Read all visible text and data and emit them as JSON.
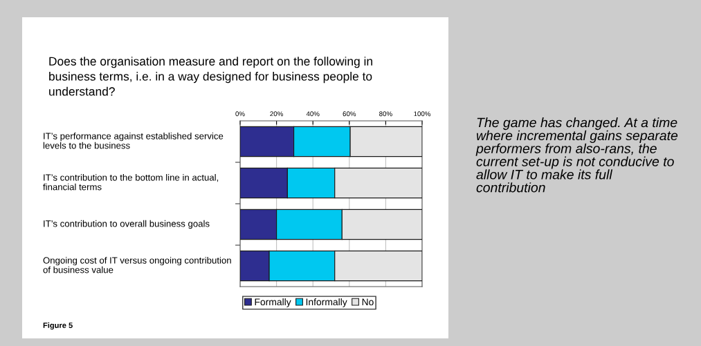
{
  "chart_data": {
    "type": "bar",
    "orientation": "horizontal",
    "stacked": true,
    "title": "Does the organisation measure and report on the following in business terms, i.e. in a way designed for business people to understand?",
    "categories": [
      "IT’s performance against established service levels to the business",
      "IT’s contribution to the bottom line in actual, financial terms",
      "IT’s contribution to overall business goals",
      "Ongoing cost of IT versus ongoing contribution of business value"
    ],
    "series": [
      {
        "name": "Formally",
        "color": "#2e2e90",
        "values": [
          29.5,
          26,
          20,
          16
        ]
      },
      {
        "name": "Informally",
        "color": "#00c8f0",
        "values": [
          31,
          26,
          36,
          36
        ]
      },
      {
        "name": "No",
        "color": "#e4e4e4",
        "values": [
          39.5,
          48,
          44,
          48
        ]
      }
    ],
    "xlim": [
      0,
      100
    ],
    "xticks": [
      {
        "value": 0,
        "label": "0%"
      },
      {
        "value": 20,
        "label": "20%"
      },
      {
        "value": 40,
        "label": "40%"
      },
      {
        "value": 60,
        "label": "60%"
      },
      {
        "value": 80,
        "label": "80%"
      },
      {
        "value": 100,
        "label": "100%"
      }
    ],
    "grid": "x",
    "legend": "bottom",
    "annotations": [
      "Figure 5",
      "The game has changed. At a time where incremental gains separate performers from also-rans, the current set-up is not conducive to allow IT to make its full contribution"
    ]
  }
}
